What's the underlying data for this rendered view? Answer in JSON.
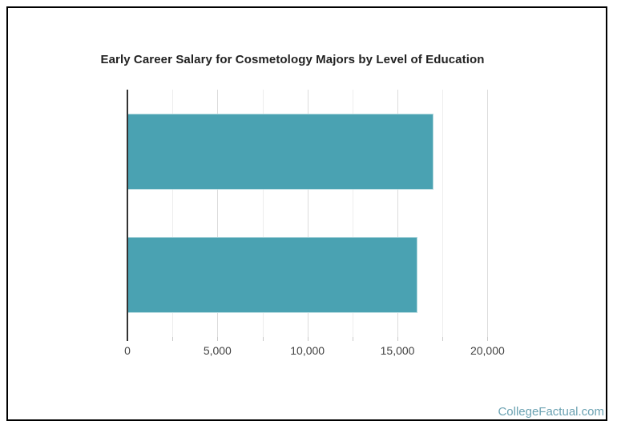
{
  "image_frame": {
    "border_color": "#000000",
    "background": "#ffffff"
  },
  "chart_data": {
    "type": "bar",
    "orientation": "horizontal",
    "title": "Early Career Salary for Cosmetology Majors by Level of Education",
    "categories": [
      "",
      ""
    ],
    "values": [
      17000,
      16100
    ],
    "xlabel": "",
    "ylabel": "",
    "xlim": [
      0,
      20000
    ],
    "x_ticks": [
      {
        "value": 0,
        "label": "0"
      },
      {
        "value": 2500,
        "label": ""
      },
      {
        "value": 5000,
        "label": "5,000"
      },
      {
        "value": 7500,
        "label": ""
      },
      {
        "value": 10000,
        "label": "10,000"
      },
      {
        "value": 12500,
        "label": ""
      },
      {
        "value": 15000,
        "label": "15,000"
      },
      {
        "value": 17500,
        "label": ""
      },
      {
        "value": 20000,
        "label": "20,000"
      }
    ],
    "gridline_step": 2500,
    "grid": "vertical gridlines on, light gray",
    "legend": "none",
    "bar_color": "#4AA2B2",
    "bar_edge_color": "#B5DAE0",
    "axis_color": "#333333",
    "tick_label_color": "#424242",
    "title_color": "#212121"
  },
  "watermark": {
    "text": "CollegeFactual.com",
    "color": "#6BA2B2"
  }
}
